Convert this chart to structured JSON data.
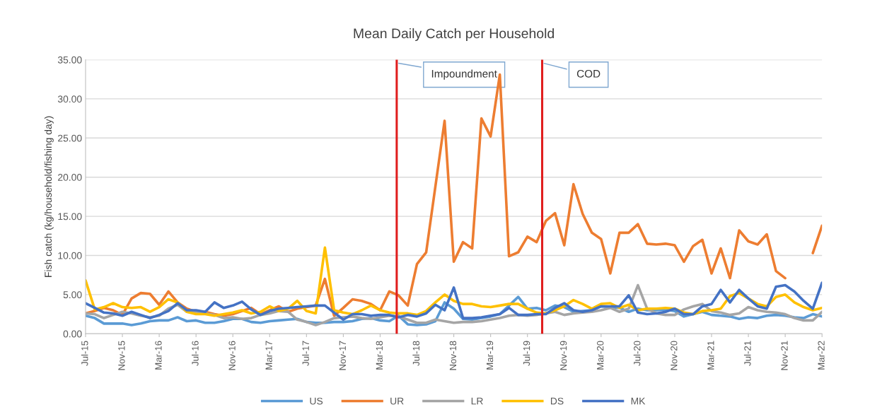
{
  "chart_data": {
    "type": "line",
    "title": "Mean Daily Catch per Household",
    "ylabel": "Fish catch (kg/household/fishing day)",
    "x": [
      "2015-07",
      "2015-08",
      "2015-09",
      "2015-10",
      "2015-11",
      "2015-12",
      "2016-01",
      "2016-02",
      "2016-03",
      "2016-04",
      "2016-05",
      "2016-06",
      "2016-07",
      "2016-08",
      "2016-09",
      "2016-10",
      "2016-11",
      "2016-12",
      "2017-01",
      "2017-02",
      "2017-03",
      "2017-04",
      "2017-05",
      "2017-06",
      "2017-07",
      "2017-08",
      "2017-09",
      "2017-10",
      "2017-11",
      "2017-12",
      "2018-01",
      "2018-02",
      "2018-03",
      "2018-04",
      "2018-05",
      "2018-06",
      "2018-07",
      "2018-08",
      "2018-09",
      "2018-10",
      "2018-11",
      "2018-12",
      "2019-01",
      "2019-02",
      "2019-03",
      "2019-04",
      "2019-05",
      "2019-06",
      "2019-07",
      "2019-08",
      "2019-09",
      "2019-10",
      "2019-11",
      "2019-12",
      "2020-01",
      "2020-02",
      "2020-03",
      "2020-04",
      "2020-05",
      "2020-06",
      "2020-07",
      "2020-08",
      "2020-09",
      "2020-10",
      "2020-11",
      "2020-12",
      "2021-01",
      "2021-02",
      "2021-03",
      "2021-04",
      "2021-05",
      "2021-06",
      "2021-07",
      "2021-08",
      "2021-09",
      "2021-10",
      "2021-11",
      "2021-12",
      "2022-01",
      "2022-02",
      "2022-03"
    ],
    "series": [
      {
        "name": "US",
        "color": "#5b9bd5",
        "values": [
          2.3,
          2.0,
          1.3,
          1.3,
          1.3,
          1.1,
          1.3,
          1.6,
          1.7,
          1.7,
          2.1,
          1.6,
          1.7,
          1.4,
          1.4,
          1.6,
          1.9,
          1.9,
          1.5,
          1.4,
          1.6,
          1.7,
          1.8,
          1.9,
          1.5,
          1.4,
          1.4,
          1.5,
          1.5,
          1.6,
          1.9,
          2.0,
          1.7,
          1.6,
          2.3,
          1.2,
          1.1,
          1.2,
          1.6,
          4.0,
          3.2,
          1.9,
          1.8,
          2.0,
          2.2,
          2.5,
          3.6,
          4.7,
          3.2,
          3.3,
          3.0,
          3.6,
          3.4,
          2.8,
          2.9,
          3.0,
          3.5,
          3.4,
          3.3,
          2.8,
          3.2,
          3.0,
          3.0,
          3.1,
          2.9,
          2.2,
          2.5,
          2.8,
          2.4,
          2.3,
          2.2,
          1.9,
          2.1,
          2.0,
          2.3,
          2.4,
          2.3,
          2.1,
          2.0,
          2.5,
          2.2
        ]
      },
      {
        "name": "UR",
        "color": "#ed7d31",
        "values": [
          2.6,
          2.9,
          3.3,
          3.0,
          2.4,
          4.5,
          5.2,
          5.1,
          3.7,
          5.4,
          4.0,
          3.2,
          2.8,
          2.8,
          2.5,
          2.3,
          2.5,
          2.9,
          3.3,
          2.5,
          3.0,
          3.5,
          2.8,
          3.2,
          3.4,
          3.6,
          7.0,
          2.3,
          3.3,
          4.4,
          4.2,
          3.8,
          3.0,
          5.4,
          4.9,
          3.6,
          8.9,
          10.4,
          18.8,
          27.2,
          9.2,
          11.7,
          10.9,
          27.5,
          25.2,
          33.1,
          9.9,
          10.4,
          12.4,
          11.7,
          14.4,
          15.4,
          11.3,
          19.1,
          15.3,
          12.9,
          12.1,
          7.7,
          12.9,
          12.9,
          14.0,
          11.5,
          11.4,
          11.5,
          11.3,
          9.2,
          11.2,
          12.0,
          7.7,
          10.9,
          7.1,
          13.2,
          11.8,
          11.4,
          12.7,
          8.0,
          7.1,
          null,
          null,
          10.3,
          13.8
        ]
      },
      {
        "name": "LR",
        "color": "#a5a5a5",
        "values": [
          2.6,
          2.5,
          2.0,
          2.4,
          2.8,
          2.6,
          2.3,
          2.1,
          2.3,
          3.2,
          3.7,
          2.8,
          2.7,
          2.6,
          2.4,
          2.0,
          2.1,
          1.9,
          2.0,
          2.4,
          2.6,
          2.9,
          2.8,
          1.8,
          1.5,
          1.1,
          1.5,
          2.0,
          2.1,
          2.2,
          2.0,
          1.9,
          2.1,
          2.3,
          2.2,
          1.8,
          1.4,
          1.4,
          1.8,
          1.6,
          1.4,
          1.5,
          1.5,
          1.6,
          1.8,
          2.0,
          2.3,
          2.4,
          2.3,
          2.4,
          2.6,
          2.8,
          2.4,
          2.6,
          2.7,
          2.8,
          3.0,
          3.3,
          2.8,
          3.2,
          6.2,
          3.2,
          2.6,
          2.4,
          2.4,
          3.1,
          3.5,
          3.8,
          2.9,
          2.7,
          2.4,
          2.6,
          3.4,
          3.0,
          2.8,
          2.7,
          2.5,
          2.0,
          1.7,
          1.7,
          2.8
        ]
      },
      {
        "name": "DS",
        "color": "#ffc000",
        "values": [
          6.8,
          3.1,
          3.4,
          3.9,
          3.4,
          3.3,
          3.4,
          2.8,
          3.4,
          4.4,
          4.0,
          2.8,
          2.5,
          2.5,
          2.3,
          2.5,
          2.7,
          3.0,
          2.6,
          2.8,
          3.5,
          2.9,
          3.2,
          4.2,
          2.9,
          2.6,
          11.0,
          3.0,
          2.7,
          2.5,
          3.0,
          3.6,
          3.0,
          2.7,
          2.6,
          2.6,
          2.4,
          2.9,
          4.0,
          5.0,
          4.2,
          3.8,
          3.8,
          3.5,
          3.4,
          3.6,
          3.8,
          3.8,
          3.2,
          2.7,
          2.6,
          3.0,
          3.5,
          4.3,
          3.8,
          3.2,
          3.8,
          3.9,
          3.3,
          3.7,
          3.0,
          3.2,
          3.2,
          3.3,
          3.2,
          2.7,
          2.5,
          2.9,
          3.0,
          3.2,
          4.8,
          5.2,
          4.5,
          3.8,
          3.5,
          4.7,
          5.0,
          4.0,
          3.4,
          3.0,
          3.3
        ]
      },
      {
        "name": "MK",
        "color": "#4472c4",
        "values": [
          3.9,
          3.3,
          2.7,
          2.6,
          2.3,
          2.8,
          2.4,
          2.0,
          2.4,
          2.9,
          3.9,
          3.0,
          3.0,
          2.8,
          4.0,
          3.3,
          3.6,
          4.1,
          3.1,
          2.4,
          2.9,
          3.2,
          3.3,
          3.4,
          3.5,
          3.6,
          3.6,
          2.7,
          1.8,
          2.5,
          2.5,
          2.3,
          2.4,
          2.4,
          2.1,
          2.4,
          2.2,
          2.6,
          3.7,
          3.0,
          5.9,
          2.0,
          2.0,
          2.1,
          2.3,
          2.5,
          3.3,
          2.4,
          2.4,
          2.5,
          2.5,
          3.3,
          3.9,
          3.0,
          2.8,
          3.0,
          3.5,
          3.5,
          3.5,
          4.9,
          2.7,
          2.5,
          2.6,
          2.8,
          3.2,
          2.5,
          2.5,
          3.5,
          3.8,
          5.6,
          4.0,
          5.6,
          4.5,
          3.5,
          3.2,
          6.0,
          6.2,
          5.4,
          4.2,
          3.2,
          6.5
        ]
      }
    ],
    "xlim": [
      "2015-07",
      "2022-03"
    ],
    "xticks": [
      {
        "value": "2015-07",
        "label": "Jul-15"
      },
      {
        "value": "2015-11",
        "label": "Nov-15"
      },
      {
        "value": "2016-03",
        "label": "Mar-16"
      },
      {
        "value": "2016-07",
        "label": "Jul-16"
      },
      {
        "value": "2016-11",
        "label": "Nov-16"
      },
      {
        "value": "2017-03",
        "label": "Mar-17"
      },
      {
        "value": "2017-07",
        "label": "Jul-17"
      },
      {
        "value": "2017-11",
        "label": "Nov-17"
      },
      {
        "value": "2018-03",
        "label": "Mar-18"
      },
      {
        "value": "2018-07",
        "label": "Jul-18"
      },
      {
        "value": "2018-11",
        "label": "Nov-18"
      },
      {
        "value": "2019-03",
        "label": "Mar-19"
      },
      {
        "value": "2019-07",
        "label": "Jul-19"
      },
      {
        "value": "2019-11",
        "label": "Nov-19"
      },
      {
        "value": "2020-03",
        "label": "Mar-20"
      },
      {
        "value": "2020-07",
        "label": "Jul-20"
      },
      {
        "value": "2020-11",
        "label": "Nov-20"
      },
      {
        "value": "2021-03",
        "label": "Mar-21"
      },
      {
        "value": "2021-07",
        "label": "Jul-21"
      },
      {
        "value": "2021-11",
        "label": "Nov-21"
      },
      {
        "value": "2022-03",
        "label": "Mar-22"
      }
    ],
    "ylim": [
      0,
      35
    ],
    "yticks": [
      {
        "value": 0,
        "label": "0.00"
      },
      {
        "value": 5,
        "label": "5.00"
      },
      {
        "value": 10,
        "label": "10.00"
      },
      {
        "value": 15,
        "label": "15.00"
      },
      {
        "value": 20,
        "label": "20.00"
      },
      {
        "value": 25,
        "label": "25.00"
      },
      {
        "value": 30,
        "label": "30.00"
      },
      {
        "value": 35,
        "label": "35.00"
      }
    ],
    "ref_lines": [
      {
        "axis": "x",
        "value": "2018-04-25",
        "label": "Impoundment",
        "color": "#e01e1e"
      },
      {
        "axis": "x",
        "value": "2019-08-19",
        "label": "COD",
        "color": "#e01e1e"
      }
    ],
    "grid": "y",
    "legend": "bottom",
    "marker": "none",
    "line_style": "solid"
  }
}
